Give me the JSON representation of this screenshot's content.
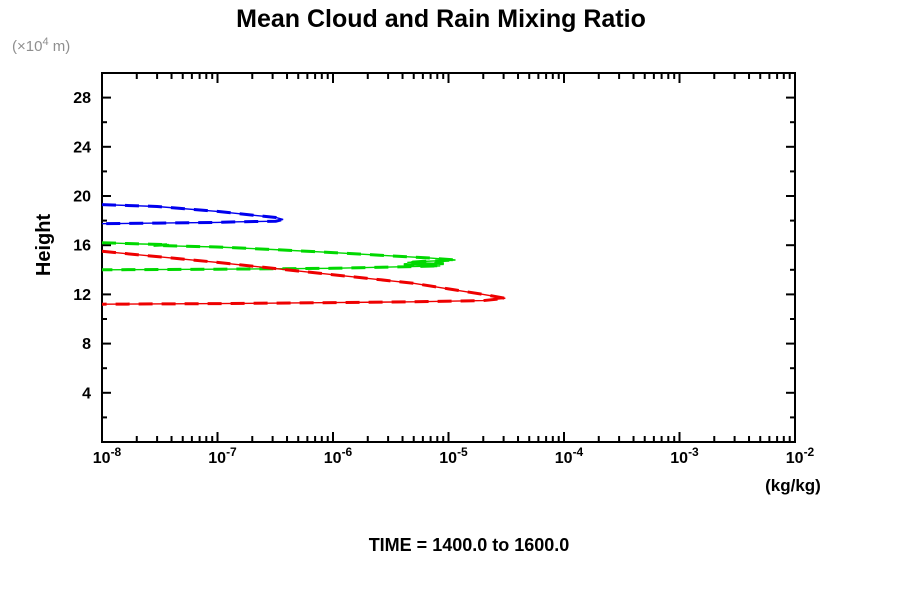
{
  "chart_data": {
    "type": "line",
    "title": "Mean Cloud and Rain Mixing Ratio",
    "footer": "TIME = 1400.0 to 1600.0",
    "grid": false,
    "legend": false,
    "y_axis": {
      "label": "Height",
      "unit_prefix": "(×10",
      "unit_superscript": "4",
      "unit_suffix": " m)",
      "domain": [
        0,
        30
      ],
      "major_ticks": [
        4,
        8,
        12,
        16,
        20,
        24,
        28
      ],
      "minor_step": 2
    },
    "x_axis": {
      "unit": "(kg/kg)",
      "scale": "log",
      "tick_base": "10",
      "domain_exponents": [
        -8,
        -2
      ],
      "tick_exponents": [
        -8,
        -7,
        -6,
        -5,
        -4,
        -3,
        -2
      ]
    },
    "series": [
      {
        "name": "blue",
        "color": "#0000ee",
        "style": "thin solid with thick dashed overlay",
        "points": [
          [
            1e-08,
            19.3
          ],
          [
            3e-08,
            19.15
          ],
          [
            1e-07,
            18.75
          ],
          [
            2e-07,
            18.45
          ],
          [
            3.2e-07,
            18.25
          ],
          [
            3.7e-07,
            18.1
          ],
          [
            3.2e-07,
            17.95
          ],
          [
            1.5e-07,
            17.9
          ],
          [
            1e-07,
            17.85
          ],
          [
            3e-08,
            17.8
          ],
          [
            1e-08,
            17.75
          ]
        ]
      },
      {
        "name": "green",
        "color": "#00d800",
        "style": "thin solid with thick dashed overlay",
        "points": [
          [
            1e-08,
            16.2
          ],
          [
            2.2e-08,
            16.1
          ],
          [
            3.8e-08,
            16.05
          ],
          [
            2.8e-08,
            15.98
          ],
          [
            5e-08,
            15.92
          ],
          [
            1e-07,
            15.85
          ],
          [
            3e-07,
            15.65
          ],
          [
            1e-06,
            15.4
          ],
          [
            3e-06,
            15.15
          ],
          [
            7e-06,
            14.95
          ],
          [
            1.15e-05,
            14.8
          ],
          [
            6e-06,
            14.68
          ],
          [
            4.4e-06,
            14.6
          ],
          [
            9.1e-06,
            14.5
          ],
          [
            4.1e-06,
            14.42
          ],
          [
            8.5e-06,
            14.32
          ],
          [
            3e-06,
            14.22
          ],
          [
            1e-06,
            14.12
          ],
          [
            1e-07,
            14.05
          ],
          [
            1e-08,
            14.0
          ]
        ]
      },
      {
        "name": "red",
        "color": "#ee0000",
        "style": "thin solid with thick dashed overlay",
        "points": [
          [
            1e-08,
            15.5
          ],
          [
            1e-07,
            14.6
          ],
          [
            1e-06,
            13.6
          ],
          [
            5e-06,
            12.9
          ],
          [
            1e-05,
            12.45
          ],
          [
            2e-05,
            12.0
          ],
          [
            3.1e-05,
            11.68
          ],
          [
            2e-05,
            11.5
          ],
          [
            5e-06,
            11.4
          ],
          [
            1e-06,
            11.33
          ],
          [
            1e-07,
            11.25
          ],
          [
            1e-08,
            11.2
          ]
        ]
      }
    ]
  }
}
